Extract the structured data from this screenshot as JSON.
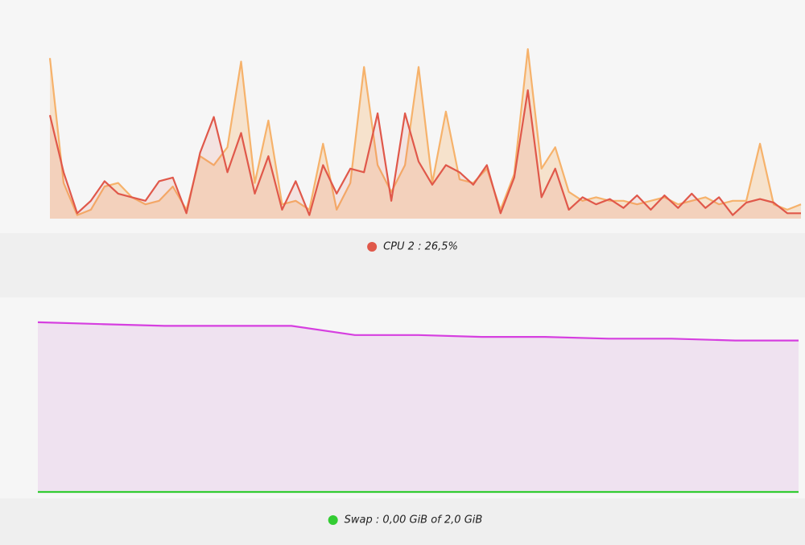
{
  "chart_data": [
    {
      "type": "line",
      "ylim": [
        0,
        100
      ],
      "fill": true,
      "series": [
        {
          "color": "#f6b26b",
          "values": [
            90,
            20,
            2,
            5,
            18,
            20,
            12,
            8,
            10,
            18,
            5,
            35,
            30,
            40,
            88,
            20,
            55,
            8,
            10,
            5,
            42,
            5,
            20,
            85,
            30,
            15,
            30,
            85,
            20,
            60,
            22,
            20,
            28,
            5,
            25,
            95,
            28,
            40,
            15,
            10,
            12,
            10,
            10,
            8,
            10,
            12,
            8,
            10,
            12,
            8,
            10,
            10,
            42,
            8,
            5,
            8
          ]
        },
        {
          "name": "CPU 2 : 26,5%",
          "color": "#e0584a",
          "values": [
            58,
            26,
            3,
            10,
            21,
            14,
            12,
            10,
            21,
            23,
            3,
            37,
            57,
            26,
            48,
            14,
            35,
            5,
            21,
            2,
            30,
            14,
            28,
            26,
            59,
            10,
            59,
            32,
            19,
            30,
            26,
            19,
            30,
            3,
            23,
            72,
            12,
            28,
            5,
            12,
            8,
            11,
            6,
            13,
            5,
            13,
            6,
            14,
            6,
            12,
            2,
            9,
            11,
            9,
            3,
            3
          ]
        }
      ]
    },
    {
      "type": "line",
      "ylim": [
        0,
        100
      ],
      "fill": true,
      "series": [
        {
          "color": "#d63fe0",
          "values": [
            93,
            92,
            91,
            91,
            91,
            86,
            86,
            85,
            85,
            84,
            84,
            83,
            83
          ]
        },
        {
          "name": "Swap : 0,00 GiB of 2,0 GiB",
          "color": "#33cc33",
          "values": [
            0,
            0,
            0,
            0,
            0,
            0,
            0,
            0,
            0,
            0,
            0,
            0,
            0
          ]
        }
      ]
    }
  ]
}
